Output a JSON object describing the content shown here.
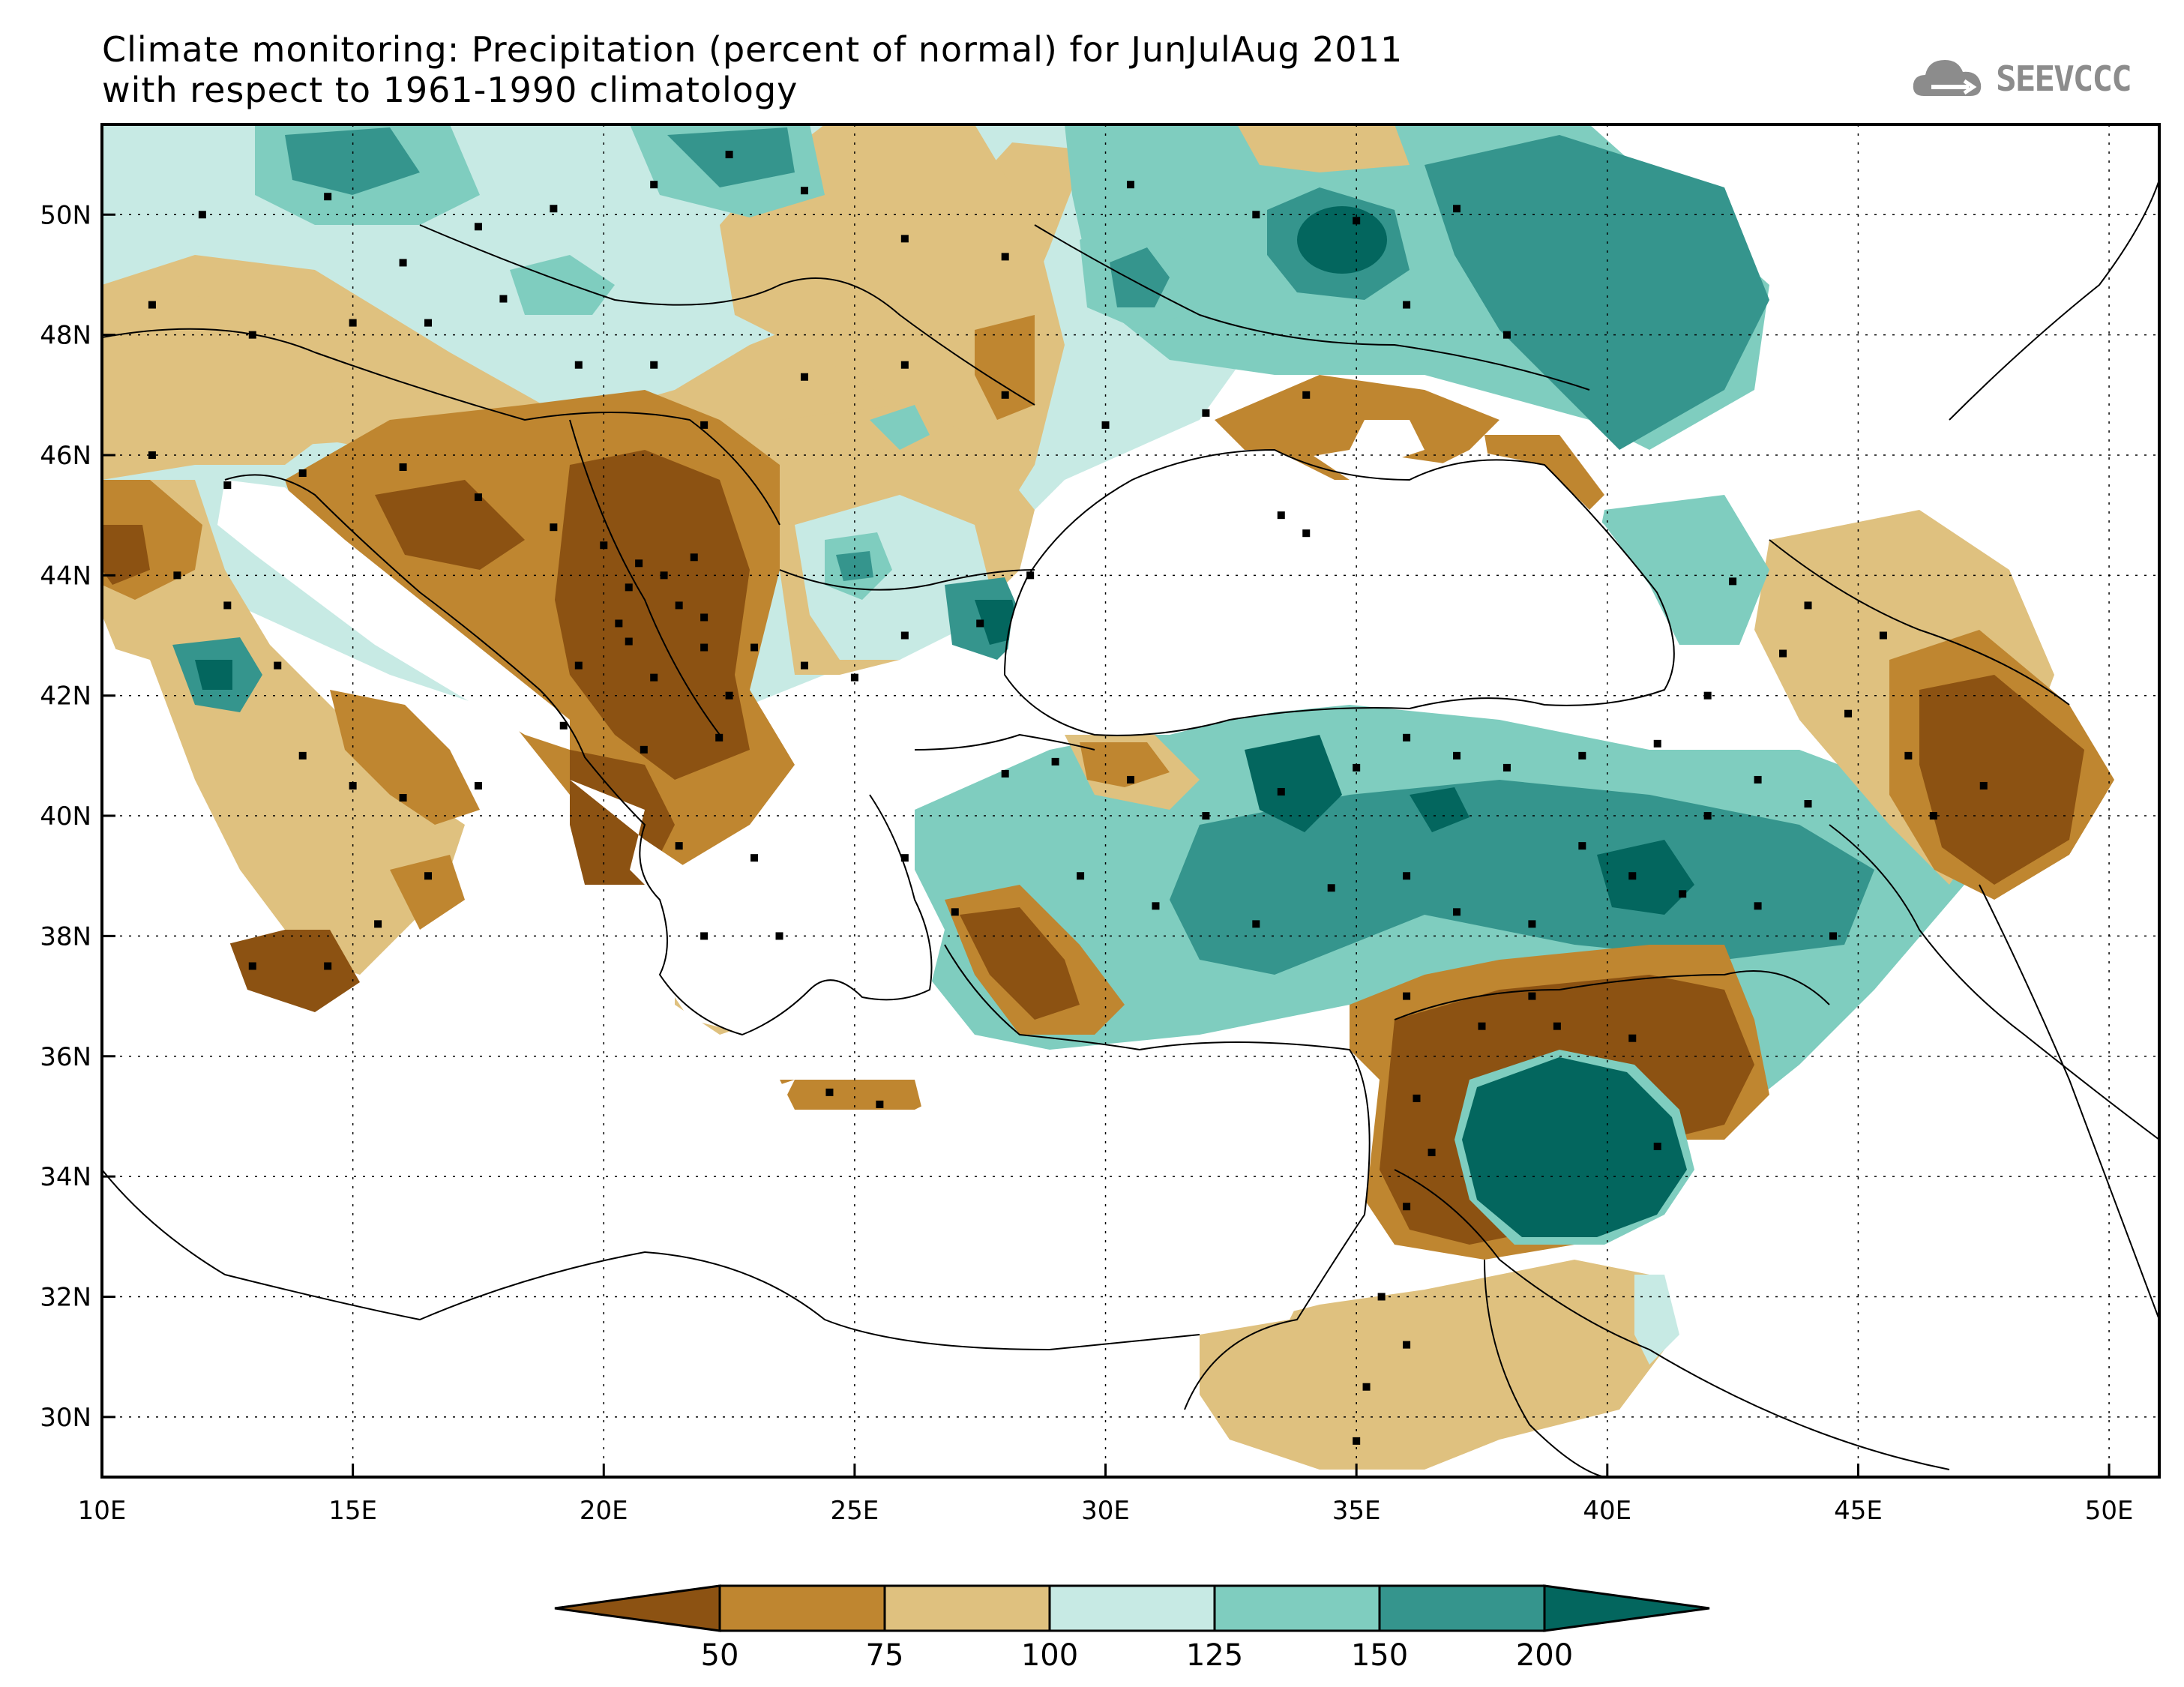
{
  "title": {
    "line1": "Climate monitoring: Precipitation (percent of normal) for JunJulAug 2011",
    "line2": "with respect to 1961-1990 climatology"
  },
  "logo": {
    "text": "SEEVCCC",
    "icon": "cloud-icon"
  },
  "map": {
    "lon_range": [
      10,
      51
    ],
    "lat_range": [
      29,
      51.5
    ],
    "lon_ticks": [
      "10E",
      "15E",
      "20E",
      "25E",
      "30E",
      "35E",
      "40E",
      "45E",
      "50E"
    ],
    "lat_ticks": [
      "30N",
      "32N",
      "34N",
      "36N",
      "38N",
      "40N",
      "42N",
      "44N",
      "46N",
      "48N",
      "50N"
    ],
    "grid": "dotted",
    "colors": {
      "below_50": "#8c5212",
      "50_75": "#bf8630",
      "75_100": "#dfc17f",
      "100_125": "#c7eae4",
      "125_150": "#7fcdbf",
      "150_200": "#35958d",
      "above_200": "#03665e"
    }
  },
  "colorbar": {
    "labels": [
      "50",
      "75",
      "100",
      "125",
      "150",
      "200"
    ],
    "colors": [
      "#8c5212",
      "#bf8630",
      "#dfc17f",
      "#c7eae4",
      "#7fcdbf",
      "#35958d",
      "#03665e"
    ]
  }
}
